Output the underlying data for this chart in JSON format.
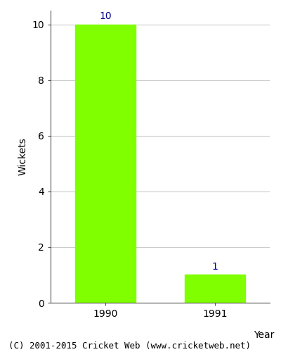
{
  "categories": [
    "1990",
    "1991"
  ],
  "values": [
    10,
    1
  ],
  "bar_color": "#7FFF00",
  "bar_width": 0.55,
  "xlabel": "Year",
  "ylabel": "Wickets",
  "ylim": [
    0,
    10.5
  ],
  "yticks": [
    0,
    2,
    4,
    6,
    8,
    10
  ],
  "label_color": "#00008B",
  "label_fontsize": 10,
  "axis_label_fontsize": 10,
  "tick_fontsize": 10,
  "footer_text": "(C) 2001-2015 Cricket Web (www.cricketweb.net)",
  "footer_fontsize": 9,
  "background_color": "#ffffff",
  "grid_color": "#cccccc"
}
